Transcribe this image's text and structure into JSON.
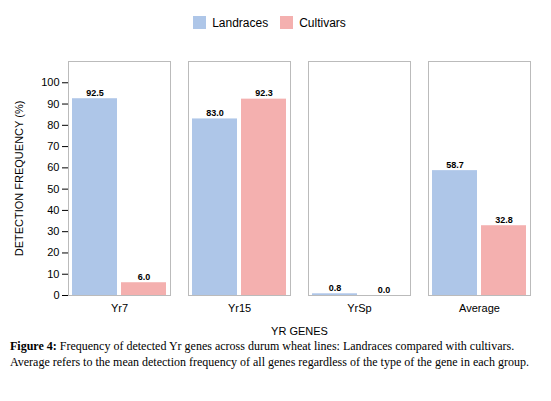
{
  "chart_data": {
    "type": "bar",
    "categories": [
      "Yr7",
      "Yr15",
      "YrSp",
      "Average"
    ],
    "series": [
      {
        "name": "Landraces",
        "color": "#aec6e8",
        "values": [
          92.5,
          83.0,
          0.8,
          58.7
        ],
        "value_labels": [
          "92.5",
          "83.0",
          "0.8",
          "58.7"
        ]
      },
      {
        "name": "Cultivars",
        "color": "#f4b0af",
        "values": [
          6.0,
          92.3,
          0.0,
          32.8
        ],
        "value_labels": [
          "6.0",
          "92.3",
          "0.0",
          "32.8"
        ]
      }
    ],
    "xlabel": "YR GENES",
    "ylabel": "DETECTION FREQUENCY (%)",
    "ylim": [
      0,
      110
    ],
    "yticks": [
      0,
      10,
      20,
      30,
      40,
      50,
      60,
      70,
      80,
      90,
      100
    ],
    "legend": "top",
    "grid": false,
    "data_labels": true,
    "caption": "Figure 4: Frequency of detected Yr genes across durum wheat lines: Landraces compared with cultivars. Average refers to the mean detection frequency of all genes regardless of the type of the gene in each group."
  }
}
